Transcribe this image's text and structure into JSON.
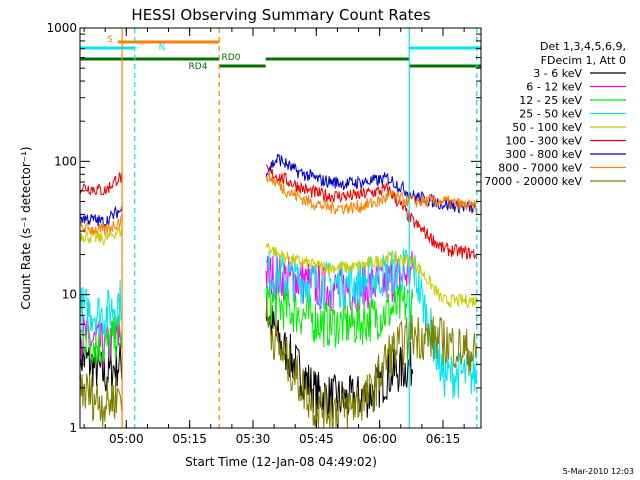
{
  "chart_data": {
    "type": "line",
    "title": "HESSI Observing Summary Count Rates",
    "xlabel": "Start Time (12-Jan-08 04:49:02)",
    "ylabel": "Count Rate (s⁻¹ detector⁻¹)",
    "y_scale": "log",
    "ylim": [
      1,
      1000
    ],
    "xlim": [
      "04:49:02",
      "06:24:00"
    ],
    "x_ticks": [
      "05:00",
      "05:15",
      "05:30",
      "05:45",
      "06:00",
      "06:15"
    ],
    "y_ticks": [
      "1",
      "10",
      "100",
      "1000"
    ],
    "grid": false,
    "legend_position": "right",
    "legend_header": [
      "Det 1,3,4,5,6,9,",
      "FDecim 1, Att 0"
    ],
    "footer_date": "5-Mar-2010 12:03",
    "flag_labels": {
      "S": "S",
      "N": "N",
      "RD0": "RD0",
      "RD4": "RD4"
    },
    "series": [
      {
        "name": "3 - 6 keV",
        "color": "#000000",
        "x": [
          "04:49",
          "04:55",
          "04:58",
          "05:33",
          "05:36",
          "05:40",
          "05:45",
          "05:52",
          "05:58",
          "06:02",
          "06:08"
        ],
        "values": [
          3.5,
          2.5,
          3.0,
          8.0,
          4.5,
          3.0,
          1.8,
          1.6,
          1.8,
          2.5,
          3.0
        ]
      },
      {
        "name": "6 - 12 keV",
        "color": "#ff00ff",
        "x": [
          "04:49",
          "04:55",
          "04:58",
          "05:33",
          "05:40",
          "05:47",
          "05:54",
          "06:00",
          "06:02",
          "06:08"
        ],
        "values": [
          5.0,
          4.0,
          5.0,
          14.0,
          13.0,
          11.0,
          11.0,
          12.0,
          12.5,
          15.0
        ]
      },
      {
        "name": "12 - 25 keV",
        "color": "#00ee00",
        "x": [
          "04:49",
          "04:55",
          "04:58",
          "05:33",
          "05:40",
          "05:47",
          "05:54",
          "06:00",
          "06:02",
          "06:08"
        ],
        "values": [
          5.0,
          4.0,
          5.0,
          9.0,
          7.5,
          6.0,
          6.0,
          7.0,
          7.5,
          9.0
        ]
      },
      {
        "name": "25 - 50 keV",
        "color": "#00e5ee",
        "x": [
          "04:49",
          "04:55",
          "04:58",
          "05:33",
          "05:40",
          "05:47",
          "05:54",
          "06:00",
          "06:02",
          "06:08",
          "06:15",
          "06:23"
        ],
        "values": [
          8.0,
          7.0,
          9.0,
          15.0,
          13.0,
          12.0,
          12.0,
          14.0,
          14.5,
          16.0,
          2.5,
          2.5
        ]
      },
      {
        "name": "50 - 100 keV",
        "color": "#cccc00",
        "x": [
          "04:49",
          "04:55",
          "04:58",
          "05:33",
          "05:36",
          "05:40",
          "05:47",
          "05:54",
          "06:00",
          "06:02",
          "06:08",
          "06:15",
          "06:23"
        ],
        "values": [
          28.0,
          26.0,
          30.0,
          24.0,
          20.0,
          18.0,
          16.0,
          16.0,
          18.0,
          19.0,
          18.0,
          9.0,
          9.0
        ]
      },
      {
        "name": "100 - 300 keV",
        "color": "#ee0000",
        "x": [
          "04:49",
          "04:55",
          "04:58",
          "05:33",
          "05:38",
          "05:43",
          "05:48",
          "05:54",
          "06:00",
          "06:02",
          "06:08",
          "06:15",
          "06:23"
        ],
        "values": [
          65.0,
          60.0,
          75.0,
          85.0,
          72.0,
          60.0,
          55.0,
          55.0,
          60.0,
          62.0,
          35.0,
          22.0,
          20.0
        ]
      },
      {
        "name": "300 - 800 keV",
        "color": "#0000cc",
        "x": [
          "04:49",
          "04:55",
          "04:58",
          "05:33",
          "05:36",
          "05:40",
          "05:46",
          "05:52",
          "06:00",
          "06:02",
          "06:08",
          "06:15",
          "06:23"
        ],
        "values": [
          38.0,
          35.0,
          42.0,
          85.0,
          105.0,
          85.0,
          72.0,
          68.0,
          72.0,
          75.0,
          55.0,
          48.0,
          44.0
        ]
      },
      {
        "name": "800 - 7000 keV",
        "color": "#ff8000",
        "x": [
          "04:49",
          "04:55",
          "04:58",
          "05:33",
          "05:38",
          "05:43",
          "05:48",
          "05:54",
          "06:00",
          "06:02",
          "06:08",
          "06:15",
          "06:23"
        ],
        "values": [
          32.0,
          30.0,
          35.0,
          80.0,
          60.0,
          50.0,
          45.0,
          45.0,
          50.0,
          55.0,
          50.0,
          50.0,
          45.0
        ]
      },
      {
        "name": "7000 - 20000 keV",
        "color": "#808000",
        "x": [
          "04:49",
          "04:55",
          "04:58",
          "05:33",
          "05:36",
          "05:40",
          "05:45",
          "05:52",
          "05:58",
          "06:02",
          "06:08",
          "06:15",
          "06:23"
        ],
        "values": [
          2.0,
          1.5,
          1.8,
          7.0,
          4.0,
          2.5,
          1.4,
          1.4,
          1.8,
          3.5,
          5.0,
          4.5,
          3.5
        ]
      }
    ],
    "flag_bars": [
      {
        "label": "S",
        "color": "#ff8000",
        "start": "04:58",
        "end": "05:22"
      },
      {
        "label": "N",
        "color": "#00e5ee",
        "start": "04:49",
        "end": "05:02"
      },
      {
        "label": "N",
        "color": "#00e5ee",
        "start": "06:07",
        "end": "06:24"
      },
      {
        "label": "RD0",
        "color": "#007000",
        "start": "04:49",
        "end": "05:22"
      },
      {
        "label": "RD0",
        "color": "#007000",
        "start": "05:33",
        "end": "06:07"
      },
      {
        "label": "RD4",
        "color": "#007000",
        "start": "05:22",
        "end": "05:33"
      },
      {
        "label": "RD4",
        "color": "#007000",
        "start": "06:07",
        "end": "06:24"
      }
    ],
    "event_lines": [
      {
        "time": "04:59",
        "color": "#ff8000",
        "style": "solid"
      },
      {
        "time": "05:02",
        "color": "#00e5ee",
        "style": "dashed"
      },
      {
        "time": "05:22",
        "color": "#ff8000",
        "style": "dashed"
      },
      {
        "time": "06:07",
        "color": "#00e5ee",
        "style": "solid"
      },
      {
        "time": "06:23",
        "color": "#00e5ee",
        "style": "dashed"
      }
    ]
  }
}
